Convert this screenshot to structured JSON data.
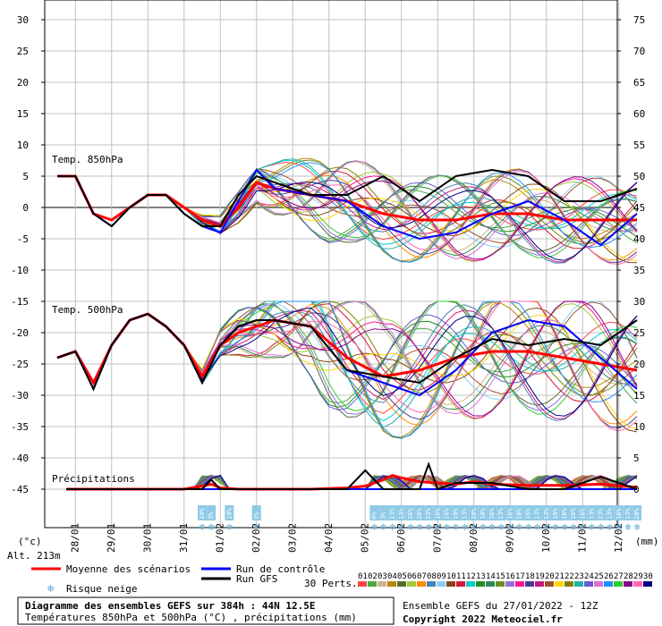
{
  "chart_data": {
    "type": "line",
    "title": "Diagramme des ensembles GEFS sur 384h : 44N 12.5E",
    "subtitle": "Températures 850hPa et 500hPa (°C) , précipitations (mm)",
    "run_info": "Ensemble GEFS du 27/01/2022 - 12Z",
    "copyright": "Copyright 2022 Meteociel.fr",
    "altitude": "Alt. 213m",
    "left_unit": "(°c)",
    "right_unit": "(mm)",
    "left_ticks": [
      "30",
      "25",
      "20",
      "15",
      "10",
      "5",
      "0",
      "-5",
      "-10",
      "-15",
      "-20",
      "-25",
      "-30",
      "-35",
      "-40",
      "-45"
    ],
    "right_ticks": [
      "75",
      "70",
      "65",
      "60",
      "55",
      "50",
      "45",
      "40",
      "35",
      "30",
      "25",
      "20",
      "15",
      "10",
      "5",
      "0"
    ],
    "date_labels": [
      "28/01",
      "29/01",
      "30/01",
      "31/01",
      "01/02",
      "02/02",
      "03/02",
      "04/02",
      "05/02",
      "06/02",
      "07/02",
      "08/02",
      "09/02",
      "10/02",
      "11/02",
      "12/02"
    ],
    "panel_labels": {
      "t850": "Temp. 850hPa",
      "t500": "Temp. 500hPa",
      "precip": "Précipitations"
    },
    "legend": {
      "mean": "Moyenne des scénarios",
      "control": "Run de contrôle",
      "gfs": "Run GFS",
      "snow": "Risque neige",
      "perts": "30 Perts."
    },
    "colors": {
      "mean": "#ff0000",
      "control": "#0000ff",
      "gfs": "#000000",
      "grid": "#c0c0c0",
      "zero": "#808080",
      "snow": "#8ecae6"
    },
    "pert_numbers": [
      "01",
      "02",
      "03",
      "04",
      "05",
      "06",
      "07",
      "08",
      "09",
      "10",
      "11",
      "12",
      "13",
      "14",
      "15",
      "16",
      "17",
      "18",
      "19",
      "20",
      "21",
      "22",
      "23",
      "24",
      "25",
      "26",
      "27",
      "28",
      "29",
      "30"
    ],
    "pert_colors": [
      "#ff4444",
      "#44aa44",
      "#d2b48c",
      "#b8860b",
      "#556b2f",
      "#9acd32",
      "#ff8c00",
      "#4682b4",
      "#87cefa",
      "#8b4513",
      "#dc143c",
      "#00ced1",
      "#228b22",
      "#2e8b57",
      "#6b8e23",
      "#9370db",
      "#ff1493",
      "#483d8b",
      "#c71585",
      "#a0522d",
      "#ffd700",
      "#808000",
      "#20b2aa",
      "#6a5acd",
      "#da70d6",
      "#1e90ff",
      "#32cd32",
      "#8b008b",
      "#ff69b4",
      "#000080"
    ],
    "snow_risk": [
      {
        "x": 4.0,
        "pct": "10%"
      },
      {
        "x": 4.25,
        "pct": "3%"
      },
      {
        "x": 4.75,
        "pct": "10%"
      },
      {
        "x": 5.5,
        "pct": "3%"
      },
      {
        "x": 8.75,
        "pct": "6%"
      },
      {
        "x": 9.0,
        "pct": "3%"
      },
      {
        "x": 9.25,
        "pct": "13%"
      },
      {
        "x": 9.5,
        "pct": "13%"
      },
      {
        "x": 9.75,
        "pct": "26%"
      },
      {
        "x": 10.0,
        "pct": "26%"
      },
      {
        "x": 10.25,
        "pct": "23%"
      },
      {
        "x": 10.5,
        "pct": "16%"
      },
      {
        "x": 10.75,
        "pct": "16%"
      },
      {
        "x": 11.0,
        "pct": "10%"
      },
      {
        "x": 11.25,
        "pct": "13%"
      },
      {
        "x": 11.5,
        "pct": "10%"
      },
      {
        "x": 11.75,
        "pct": "10%"
      },
      {
        "x": 12.0,
        "pct": "16%"
      },
      {
        "x": 12.25,
        "pct": "13%"
      },
      {
        "x": 12.5,
        "pct": "16%"
      },
      {
        "x": 12.75,
        "pct": "10%"
      },
      {
        "x": 13.0,
        "pct": "16%"
      },
      {
        "x": 13.25,
        "pct": "13%"
      },
      {
        "x": 13.5,
        "pct": "13%"
      },
      {
        "x": 13.75,
        "pct": "10%"
      },
      {
        "x": 14.0,
        "pct": "16%"
      },
      {
        "x": 14.25,
        "pct": "16%"
      },
      {
        "x": 14.5,
        "pct": "16%"
      },
      {
        "x": 14.75,
        "pct": "13%"
      },
      {
        "x": 15.0,
        "pct": "23%"
      },
      {
        "x": 15.25,
        "pct": "13%"
      },
      {
        "x": 15.5,
        "pct": "16%"
      },
      {
        "x": 15.75,
        "pct": "13%"
      },
      {
        "x": 16.0,
        "pct": "20%"
      }
    ],
    "x_unit": "days since 27/01 12Z",
    "series": [
      {
        "name": "Moyenne des scénarios",
        "panel": "t850",
        "x": [
          0,
          0.5,
          1,
          1.5,
          2,
          2.5,
          3,
          3.5,
          4,
          4.5,
          5,
          5.5,
          6,
          7,
          8,
          9,
          10,
          11,
          12,
          13,
          14,
          15,
          16
        ],
        "values": [
          5,
          5,
          -1,
          -2,
          0,
          2,
          2,
          0,
          -2,
          -3,
          0,
          4,
          3,
          2,
          1,
          -1,
          -2,
          -2,
          -1,
          -1,
          -2,
          -2,
          -2
        ]
      },
      {
        "name": "Run de contrôle",
        "panel": "t850",
        "x": [
          0,
          0.5,
          1,
          1.5,
          2,
          2.5,
          3,
          3.5,
          4,
          4.5,
          5,
          5.5,
          6,
          7,
          8,
          9,
          10,
          11,
          12,
          13,
          14,
          15,
          16
        ],
        "values": [
          5,
          5,
          -1,
          -3,
          0,
          2,
          2,
          -1,
          -3,
          -4,
          1,
          6,
          3,
          2,
          1,
          -3,
          -5,
          -4,
          -1,
          1,
          -2,
          -6,
          -1
        ]
      },
      {
        "name": "Run GFS",
        "panel": "t850",
        "x": [
          0,
          0.5,
          1,
          1.5,
          2,
          2.5,
          3,
          3.5,
          4,
          4.5,
          5,
          5.5,
          6,
          7,
          8,
          9,
          10,
          11,
          12,
          13,
          14,
          15,
          16
        ],
        "values": [
          5,
          5,
          -1,
          -3,
          0,
          2,
          2,
          -1,
          -3,
          -3,
          2,
          5,
          4,
          2,
          2,
          5,
          1,
          5,
          6,
          5,
          1,
          1,
          3
        ]
      },
      {
        "name": "Moyenne des scénarios",
        "panel": "t500",
        "x": [
          0,
          0.5,
          1,
          1.5,
          2,
          2.5,
          3,
          3.5,
          4,
          4.5,
          5,
          5.5,
          6,
          7,
          8,
          9,
          10,
          11,
          12,
          13,
          14,
          15,
          16
        ],
        "values": [
          -24,
          -23,
          -28,
          -22,
          -18,
          -17,
          -19,
          -22,
          -27,
          -22,
          -20,
          -19,
          -18,
          -19,
          -24,
          -27,
          -26,
          -24,
          -23,
          -23,
          -24,
          -25,
          -26
        ]
      },
      {
        "name": "Run de contrôle",
        "panel": "t500",
        "x": [
          0,
          0.5,
          1,
          1.5,
          2,
          2.5,
          3,
          3.5,
          4,
          4.5,
          5,
          5.5,
          6,
          7,
          8,
          9,
          10,
          11,
          12,
          13,
          14,
          15,
          16
        ],
        "values": [
          -24,
          -23,
          -29,
          -22,
          -18,
          -17,
          -19,
          -22,
          -28,
          -22,
          -19,
          -18,
          -18,
          -19,
          -26,
          -28,
          -30,
          -26,
          -20,
          -18,
          -19,
          -24,
          -29
        ]
      },
      {
        "name": "Run GFS",
        "panel": "t500",
        "x": [
          0,
          0.5,
          1,
          1.5,
          2,
          2.5,
          3,
          3.5,
          4,
          4.5,
          5,
          5.5,
          6,
          7,
          8,
          9,
          10,
          11,
          12,
          13,
          14,
          15,
          16
        ],
        "values": [
          -24,
          -23,
          -29,
          -22,
          -18,
          -17,
          -19,
          -22,
          -28,
          -22,
          -19,
          -18,
          -18,
          -19,
          -26,
          -27,
          -28,
          -24,
          -21,
          -22,
          -21,
          -22,
          -18
        ]
      },
      {
        "name": "Moyenne des scénarios",
        "panel": "precip",
        "x": [
          0.25,
          1,
          2,
          3,
          3.5,
          4,
          4.25,
          4.5,
          5,
          6,
          7,
          8,
          8.5,
          9,
          9.25,
          9.5,
          10,
          11,
          11.5,
          12,
          13,
          14,
          15,
          16
        ],
        "values": [
          0,
          0,
          0,
          0,
          0,
          0.5,
          0.8,
          0.2,
          0,
          0,
          0,
          0.2,
          0.5,
          1.5,
          2.2,
          1.8,
          1.2,
          0.8,
          1.2,
          0.8,
          0.6,
          0.6,
          0.8,
          0.3
        ]
      },
      {
        "name": "Run de contrôle",
        "panel": "precip",
        "x": [
          0.25,
          2,
          4,
          5,
          8,
          9,
          10,
          11,
          12,
          13,
          14,
          15,
          16
        ],
        "values": [
          0,
          0,
          0,
          0,
          0,
          0,
          0,
          0,
          0,
          0,
          0,
          0,
          0
        ]
      },
      {
        "name": "Run GFS",
        "panel": "precip",
        "x": [
          0.25,
          2,
          4,
          4.25,
          4.5,
          5,
          8,
          8.5,
          9,
          10,
          10.25,
          10.5,
          11,
          12,
          13,
          14,
          15,
          16
        ],
        "values": [
          0,
          0,
          0,
          1.5,
          0,
          0,
          0,
          3,
          0,
          0,
          4,
          0,
          1,
          1,
          0,
          0,
          2,
          0
        ]
      }
    ]
  }
}
